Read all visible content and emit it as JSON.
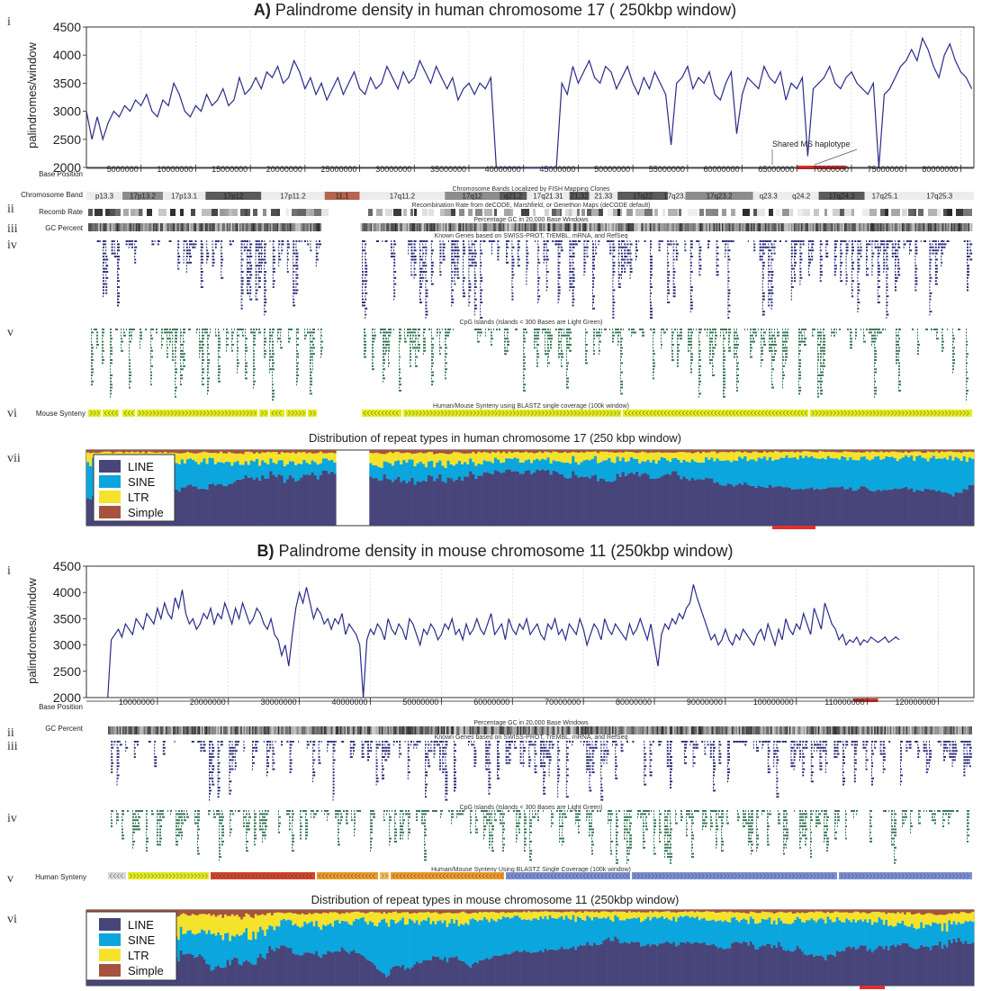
{
  "colors": {
    "line": "#2b2b8a",
    "LINE": "#47457a",
    "SINE": "#0aa6dd",
    "LTR": "#f5e22a",
    "Simple": "#a5533f",
    "highlight": "#e0302a",
    "synteny_yellow": "#e4ec1f",
    "synteny_red": "#d2452a",
    "synteny_orange": "#ef9a2a",
    "synteny_blue": "#7d8fd6",
    "genes": "#2f2f7a",
    "cpg": "#3c7a5a"
  },
  "panelA": {
    "title_letter": "A)",
    "title_text": " Palindrome density in human chromosome 17 ( 250kbp window)",
    "roman": [
      "i",
      "ii",
      "iii",
      "iv",
      "v",
      "vi",
      "vii"
    ],
    "annotation": "Shared MS haplotype",
    "track_labels": {
      "base_position": "Base Position",
      "chromosome_band": "Chromosome Band",
      "recomb_rate": "Recomb Rate",
      "gc_percent": "GC Percent",
      "mouse_synteny": "Mouse Synteny"
    },
    "track_captions": {
      "bands": "Chromosome Bands Localized by FISH Mapping Clones",
      "recomb": "Recombination Rate from deCODE, Marshfield, or Genethon Maps (deCODE default)",
      "gc": "Percentage GC in 20,000 Base Windows",
      "genes": "Known Genes based on SWISS-PROT, TrEMBL, mRNA, and RefSeq",
      "cpg": "CpG Islands (Islands < 300 Bases are Light Green)",
      "synteny": "Human/Mouse Synteny using BLASTZ single coverage (100k window)"
    },
    "bands": [
      {
        "name": "p13.3",
        "start": 0,
        "end": 3.3,
        "shade": "light"
      },
      {
        "name": "17p13.2",
        "start": 3.3,
        "end": 7.0,
        "shade": "mid"
      },
      {
        "name": "17p13.1",
        "start": 7.0,
        "end": 10.9,
        "shade": "light"
      },
      {
        "name": "17p12",
        "start": 10.9,
        "end": 16.0,
        "shade": "dark"
      },
      {
        "name": "17p11.2",
        "start": 16.0,
        "end": 21.8,
        "shade": "light"
      },
      {
        "name": "11.1",
        "start": 21.8,
        "end": 25.0,
        "shade": "cen"
      },
      {
        "name": "17q11.2",
        "start": 25.0,
        "end": 32.8,
        "shade": "light"
      },
      {
        "name": "17q12",
        "start": 32.8,
        "end": 37.8,
        "shade": "mid"
      },
      {
        "name": "q21.2",
        "start": 37.8,
        "end": 40.3,
        "shade": "dark"
      },
      {
        "name": "17q21.31",
        "start": 40.3,
        "end": 44.2,
        "shade": "light"
      },
      {
        "name": "21.32",
        "start": 44.2,
        "end": 46.0,
        "shade": "dark"
      },
      {
        "name": "21.33",
        "start": 46.0,
        "end": 48.6,
        "shade": "light"
      },
      {
        "name": "17q22",
        "start": 48.6,
        "end": 53.2,
        "shade": "dark"
      },
      {
        "name": "17q23.1",
        "start": 53.2,
        "end": 54.8,
        "shade": "light"
      },
      {
        "name": "17q23.2",
        "start": 54.8,
        "end": 61.0,
        "shade": "mid"
      },
      {
        "name": "q23.3",
        "start": 61.0,
        "end": 63.8,
        "shade": "light"
      },
      {
        "name": "q24.2",
        "start": 63.8,
        "end": 67.0,
        "shade": "light"
      },
      {
        "name": "17q24.3",
        "start": 67.0,
        "end": 71.2,
        "shade": "dark"
      },
      {
        "name": "17q25.1",
        "start": 71.2,
        "end": 74.9,
        "shade": "light"
      },
      {
        "name": "17q25.3",
        "start": 74.9,
        "end": 81.2,
        "shade": "light"
      }
    ]
  },
  "panelB": {
    "title_letter": "B)",
    "title_text": " Palindrome density in mouse chromosome 11 (250kbp window)",
    "roman": [
      "i",
      "ii",
      "iii",
      "iv",
      "v",
      "vi"
    ],
    "track_labels": {
      "base_position": "Base Position",
      "gc_percent": "GC Percent",
      "human_synteny": "Human Synteny"
    },
    "track_captions": {
      "gc": "Percentage GC in 20,000 Base Windows",
      "genes": "Known Genes based on SWISS-PROT, TrEMBL, mRNA, and RefSeq",
      "cpg": "CpG Islands (Islands < 300 Bases are Light Green)",
      "synteny": "Human/Mouse Synteny Using BLASTZ Single Coverage (100k window)"
    }
  },
  "chart_data": [
    {
      "id": "human_palindrome",
      "type": "line",
      "ylabel": "palindromes/window",
      "xlim": [
        0,
        81200000
      ],
      "ylim": [
        2000,
        4500
      ],
      "yticks": [
        2000,
        2500,
        3000,
        3500,
        4000,
        4500
      ],
      "xticks": [
        5000000,
        10000000,
        15000000,
        20000000,
        25000000,
        30000000,
        35000000,
        40000000,
        45000000,
        50000000,
        55000000,
        60000000,
        65000000,
        70000000,
        75000000,
        80000000
      ],
      "grid": "vertical",
      "x_step": 500000,
      "x_start": 0,
      "gap": [
        22000000,
        25000000
      ],
      "y": [
        3000,
        2500,
        2900,
        2500,
        2800,
        3000,
        2900,
        3100,
        3000,
        3200,
        3100,
        3300,
        3000,
        2900,
        3200,
        3100,
        3500,
        3300,
        3000,
        2900,
        3100,
        3000,
        3300,
        3100,
        3200,
        3400,
        3100,
        3200,
        3600,
        3300,
        3400,
        3600,
        3400,
        3700,
        3600,
        3800,
        3500,
        3600,
        3900,
        3700,
        3400,
        3600,
        3300,
        3500,
        3200,
        3400,
        3600,
        3300,
        3500,
        3700,
        3400,
        3300,
        3600,
        3400,
        3500,
        3800,
        3600,
        3400,
        3700,
        3500,
        3600,
        3900,
        3700,
        3500,
        3800,
        3600,
        3400,
        3600,
        3200,
        3400,
        3500,
        3300,
        3500,
        3400,
        3600,
        2000,
        2000,
        2000,
        2000,
        2000,
        2000,
        2000,
        2000,
        2000,
        2000,
        2000,
        2000,
        3500,
        3300,
        3800,
        3500,
        3700,
        3900,
        3600,
        3500,
        3800,
        3700,
        3400,
        3600,
        3800,
        3500,
        3300,
        3600,
        3400,
        3700,
        3500,
        3300,
        2400,
        3500,
        3600,
        3800,
        3400,
        3600,
        3500,
        3700,
        3300,
        3200,
        3500,
        3700,
        2600,
        3300,
        3600,
        3500,
        3400,
        3800,
        3600,
        3500,
        3700,
        3200,
        3500,
        3400,
        3600,
        2200,
        3400,
        3500,
        3600,
        3800,
        3500,
        3400,
        3600,
        3700,
        3500,
        3400,
        3300,
        3500,
        2000,
        3300,
        3400,
        3600,
        3800,
        3900,
        4100,
        3900,
        4300,
        4100,
        3800,
        3600,
        4000,
        4200,
        3900,
        3700,
        3600,
        3400,
        3800,
        3500,
        3600,
        3400,
        3500,
        3700,
        3300,
        3400,
        3500,
        2900,
        3300,
        3500,
        3700,
        3900,
        4100,
        4300,
        4200,
        3900,
        4100,
        3800,
        4000,
        3600,
        3400,
        3100,
        3000,
        3200,
        2900,
        3100,
        3000,
        3200,
        3100,
        3000,
        2900,
        3100,
        3200,
        3000,
        2100,
        3100,
        3400,
        3300,
        3200,
        2500,
        3100,
        3000
      ],
      "highlight": {
        "start": 65000000,
        "end": 69500000,
        "label": "Shared MS haplotype"
      }
    },
    {
      "id": "human_repeats",
      "type": "area",
      "title": "Distribution of repeat types in human chromosome 17 (250 kbp window)",
      "series": [
        {
          "name": "LINE"
        },
        {
          "name": "SINE"
        },
        {
          "name": "LTR"
        },
        {
          "name": "Simple"
        }
      ],
      "legend": "top-left",
      "bins": 320,
      "gap_fraction": [
        0.28,
        0.318
      ]
    },
    {
      "id": "mouse_palindrome",
      "type": "line",
      "ylabel": "palindromes/window",
      "xlim": [
        0,
        125000000
      ],
      "ylim": [
        2000,
        4500
      ],
      "yticks": [
        2000,
        2500,
        3000,
        3500,
        4000,
        4500
      ],
      "xticks": [
        10000000,
        20000000,
        30000000,
        40000000,
        50000000,
        60000000,
        70000000,
        80000000,
        90000000,
        100000000,
        110000000,
        120000000
      ],
      "grid": "vertical",
      "x_step": 500000,
      "x_start": 3000000,
      "y": [
        2000,
        3100,
        3200,
        3300,
        3150,
        3400,
        3300,
        3200,
        3500,
        3400,
        3300,
        3600,
        3500,
        3400,
        3700,
        3500,
        3800,
        3600,
        3500,
        3900,
        3700,
        4050,
        3600,
        3400,
        3500,
        3300,
        3400,
        3600,
        3500,
        3700,
        3400,
        3600,
        3500,
        3800,
        3600,
        3400,
        3700,
        3500,
        3800,
        3600,
        3400,
        3500,
        3700,
        3600,
        3400,
        3300,
        3500,
        3200,
        3100,
        2800,
        3000,
        2600,
        3200,
        3700,
        4000,
        3800,
        4100,
        3800,
        3500,
        3700,
        3600,
        3400,
        3500,
        3300,
        3500,
        3400,
        3600,
        3200,
        3400,
        3300,
        3200,
        3000,
        2000,
        3100,
        3300,
        3200,
        3400,
        3300,
        3100,
        3500,
        3300,
        3200,
        3400,
        3300,
        3100,
        3500,
        3400,
        3200,
        3000,
        3300,
        3200,
        3400,
        3300,
        3100,
        3200,
        3400,
        3300,
        3500,
        3200,
        3300,
        3100,
        3400,
        3200,
        3300,
        3500,
        3300,
        3200,
        3400,
        3600,
        3200,
        3300,
        3400,
        3100,
        3500,
        3300,
        3200,
        3400,
        3300,
        3500,
        3200,
        3300,
        3400,
        3200,
        3100,
        3400,
        3300,
        3500,
        3200,
        3300,
        3100,
        3400,
        3300,
        3200,
        3500,
        3300,
        3000,
        3200,
        3400,
        3300,
        3100,
        3500,
        3300,
        3200,
        3400,
        3300,
        3200,
        3100,
        3400,
        3200,
        3300,
        3500,
        3300,
        3100,
        3400,
        3000,
        2600,
        3200,
        3400,
        3300,
        3500,
        3400,
        3600,
        3500,
        3700,
        3800,
        4150,
        3900,
        3700,
        3500,
        3300,
        3100,
        3200,
        3000,
        3100,
        3300,
        3100,
        3000,
        3200,
        3100,
        3300,
        3200,
        3100,
        3000,
        3200,
        3300,
        3100,
        3400,
        3200,
        3000,
        3300,
        3100,
        3500,
        3300,
        3200,
        3400,
        3300,
        3600,
        3400,
        3200,
        3700,
        3500,
        3300,
        3800,
        3600,
        3400,
        3300,
        3100,
        3200,
        3000,
        3100,
        3050,
        3150,
        3000,
        3100,
        3050,
        3150,
        3100,
        3050,
        3100,
        3150,
        3050,
        3100,
        3150,
        3100
      ],
      "highlight": {
        "start": 108000000,
        "end": 111500000
      }
    },
    {
      "id": "mouse_repeats",
      "type": "area",
      "title": "Distribution of repeat types in mouse chromosome 11  (250kbp window)",
      "series": [
        {
          "name": "LINE"
        },
        {
          "name": "SINE"
        },
        {
          "name": "LTR"
        },
        {
          "name": "Simple"
        }
      ],
      "legend": "top-left",
      "bins": 380
    }
  ]
}
